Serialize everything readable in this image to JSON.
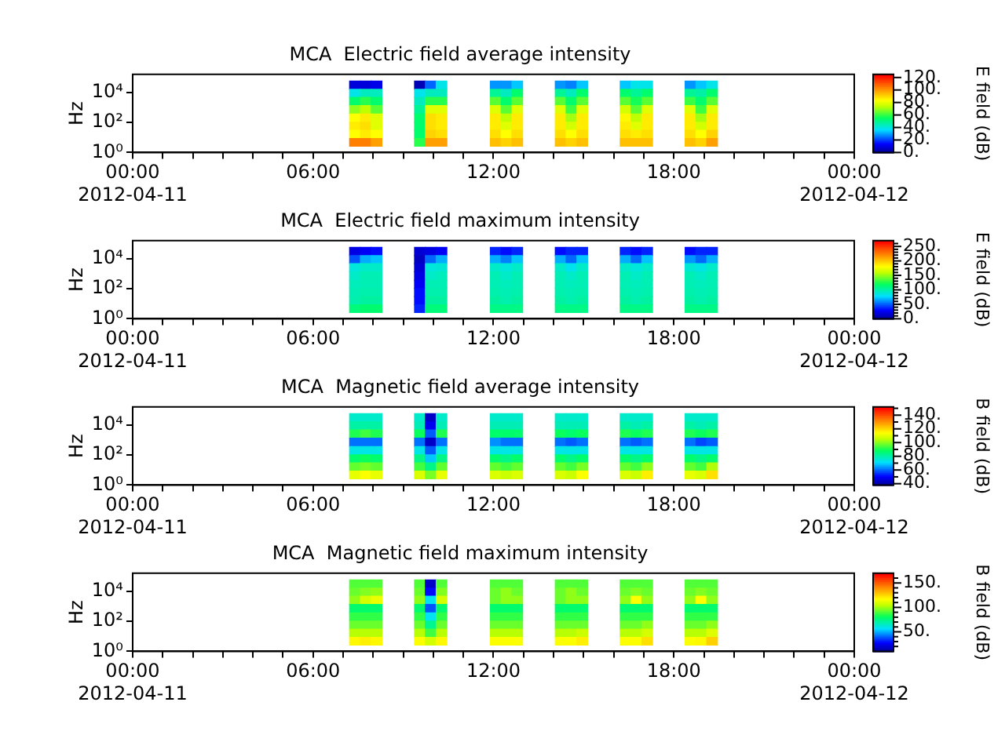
{
  "chart_data": [
    {
      "type": "heatmap",
      "title": "MCA  Electric field average intensity",
      "ylabel": "Hz",
      "clabel": "E field (dB)",
      "log": "y",
      "xlim": [
        0,
        24
      ],
      "xticks": [
        {
          "value": 0,
          "label": "00:00\n2012-04-11"
        },
        {
          "value": 1,
          "label": null
        },
        {
          "value": 2,
          "label": null
        },
        {
          "value": 3,
          "label": null
        },
        {
          "value": 4,
          "label": null
        },
        {
          "value": 5,
          "label": null
        },
        {
          "value": 6,
          "label": "06:00"
        },
        {
          "value": 7,
          "label": null
        },
        {
          "value": 8,
          "label": null
        },
        {
          "value": 9,
          "label": null
        },
        {
          "value": 10,
          "label": null
        },
        {
          "value": 11,
          "label": null
        },
        {
          "value": 12,
          "label": "12:00"
        },
        {
          "value": 13,
          "label": null
        },
        {
          "value": 14,
          "label": null
        },
        {
          "value": 15,
          "label": null
        },
        {
          "value": 16,
          "label": null
        },
        {
          "value": 17,
          "label": null
        },
        {
          "value": 18,
          "label": "18:00"
        },
        {
          "value": 19,
          "label": null
        },
        {
          "value": 20,
          "label": null
        },
        {
          "value": 21,
          "label": null
        },
        {
          "value": 22,
          "label": null
        },
        {
          "value": 23,
          "label": null
        },
        {
          "value": 24,
          "label": "00:00\n2012-04-12"
        }
      ],
      "ylim": [
        1,
        160000
      ],
      "yticks": [
        {
          "value": 1,
          "label": "10⁰"
        },
        {
          "value": 100,
          "label": "10²"
        },
        {
          "value": 10000,
          "label": "10⁴"
        }
      ],
      "clim": [
        0,
        125
      ],
      "cticks": [
        {
          "value": 0,
          "label": "0."
        },
        {
          "value": 20,
          "label": "20."
        },
        {
          "value": 40,
          "label": "40."
        },
        {
          "value": 60,
          "label": "60."
        },
        {
          "value": 80,
          "label": "80."
        },
        {
          "value": 100,
          "label": "100."
        },
        {
          "value": 120,
          "label": "120."
        }
      ],
      "x": [
        7.38,
        7.74,
        8.1,
        8.46,
        8.82,
        9.18,
        9.54,
        9.9,
        10.26,
        10.62,
        10.98,
        11.34,
        11.7,
        12.06,
        12.42,
        12.78,
        13.14,
        13.5,
        13.86,
        14.22,
        14.58,
        14.94,
        15.3,
        15.66,
        16.02,
        16.38,
        16.74,
        17.1,
        17.46,
        17.82,
        18.18,
        18.54,
        18.9,
        19.26
      ],
      "y": [
        33000,
        9400,
        2700,
        750,
        210,
        60,
        17,
        5
      ],
      "cells": [
        [
          10,
          10,
          12,
          null,
          null,
          null,
          5,
          25,
          40,
          null,
          null,
          null,
          null,
          30,
          30,
          35,
          null,
          null,
          null,
          30,
          28,
          35,
          null,
          null,
          null,
          35,
          40,
          40,
          null,
          null,
          null,
          30,
          35,
          40
        ],
        [
          40,
          45,
          45,
          null,
          null,
          null,
          40,
          45,
          45,
          null,
          null,
          null,
          null,
          50,
          45,
          55,
          null,
          null,
          null,
          50,
          45,
          55,
          null,
          null,
          null,
          55,
          50,
          55,
          null,
          null,
          null,
          50,
          48,
          55
        ],
        [
          55,
          60,
          55,
          null,
          null,
          null,
          45,
          60,
          60,
          null,
          null,
          null,
          null,
          65,
          55,
          65,
          null,
          null,
          null,
          65,
          55,
          65,
          null,
          null,
          null,
          65,
          58,
          65,
          null,
          null,
          null,
          62,
          55,
          65
        ],
        [
          70,
          75,
          65,
          null,
          null,
          null,
          50,
          80,
          80,
          null,
          null,
          null,
          null,
          80,
          65,
          80,
          null,
          null,
          null,
          80,
          62,
          80,
          null,
          null,
          null,
          78,
          65,
          80,
          null,
          null,
          null,
          80,
          62,
          80
        ],
        [
          85,
          88,
          80,
          null,
          null,
          null,
          55,
          90,
          88,
          null,
          null,
          null,
          null,
          88,
          75,
          88,
          null,
          null,
          null,
          88,
          72,
          88,
          null,
          null,
          null,
          86,
          75,
          88,
          null,
          null,
          null,
          88,
          72,
          88
        ],
        [
          88,
          90,
          80,
          null,
          null,
          null,
          55,
          90,
          88,
          null,
          null,
          null,
          null,
          88,
          80,
          88,
          null,
          null,
          null,
          88,
          78,
          88,
          null,
          null,
          null,
          88,
          80,
          88,
          null,
          null,
          null,
          88,
          78,
          88
        ],
        [
          85,
          88,
          85,
          null,
          null,
          null,
          55,
          92,
          90,
          null,
          null,
          null,
          null,
          90,
          85,
          90,
          null,
          null,
          null,
          90,
          85,
          90,
          null,
          null,
          null,
          90,
          88,
          90,
          null,
          null,
          null,
          90,
          85,
          92
        ],
        [
          105,
          105,
          100,
          null,
          null,
          null,
          60,
          100,
          100,
          null,
          null,
          null,
          null,
          95,
          92,
          95,
          null,
          null,
          null,
          95,
          92,
          95,
          null,
          null,
          null,
          95,
          95,
          95,
          null,
          null,
          null,
          95,
          92,
          100
        ]
      ]
    },
    {
      "type": "heatmap",
      "title": "MCA  Electric field maximum intensity",
      "ylabel": "Hz",
      "clabel": "E field (dB)",
      "log": "y",
      "xlim": [
        0,
        24
      ],
      "xticks": [
        {
          "value": 0,
          "label": "00:00\n2012-04-11"
        },
        {
          "value": 1,
          "label": null
        },
        {
          "value": 2,
          "label": null
        },
        {
          "value": 3,
          "label": null
        },
        {
          "value": 4,
          "label": null
        },
        {
          "value": 5,
          "label": null
        },
        {
          "value": 6,
          "label": "06:00"
        },
        {
          "value": 7,
          "label": null
        },
        {
          "value": 8,
          "label": null
        },
        {
          "value": 9,
          "label": null
        },
        {
          "value": 10,
          "label": null
        },
        {
          "value": 11,
          "label": null
        },
        {
          "value": 12,
          "label": "12:00"
        },
        {
          "value": 13,
          "label": null
        },
        {
          "value": 14,
          "label": null
        },
        {
          "value": 15,
          "label": null
        },
        {
          "value": 16,
          "label": null
        },
        {
          "value": 17,
          "label": null
        },
        {
          "value": 18,
          "label": "18:00"
        },
        {
          "value": 19,
          "label": null
        },
        {
          "value": 20,
          "label": null
        },
        {
          "value": 21,
          "label": null
        },
        {
          "value": 22,
          "label": null
        },
        {
          "value": 23,
          "label": null
        },
        {
          "value": 24,
          "label": "00:00\n2012-04-12"
        }
      ],
      "ylim": [
        1,
        160000
      ],
      "yticks": [
        {
          "value": 1,
          "label": "10⁰"
        },
        {
          "value": 100,
          "label": "10²"
        },
        {
          "value": 10000,
          "label": "10⁴"
        }
      ],
      "clim": [
        0,
        270
      ],
      "cticks": [
        {
          "value": 0,
          "label": "0."
        },
        {
          "value": 10,
          "label": null
        },
        {
          "value": 20,
          "label": null
        },
        {
          "value": 30,
          "label": null
        },
        {
          "value": 40,
          "label": null
        },
        {
          "value": 50,
          "label": "50."
        },
        {
          "value": 60,
          "label": null
        },
        {
          "value": 70,
          "label": null
        },
        {
          "value": 80,
          "label": null
        },
        {
          "value": 90,
          "label": null
        },
        {
          "value": 100,
          "label": "100."
        },
        {
          "value": 110,
          "label": null
        },
        {
          "value": 120,
          "label": null
        },
        {
          "value": 130,
          "label": null
        },
        {
          "value": 140,
          "label": null
        },
        {
          "value": 150,
          "label": "150."
        },
        {
          "value": 160,
          "label": null
        },
        {
          "value": 170,
          "label": null
        },
        {
          "value": 180,
          "label": null
        },
        {
          "value": 190,
          "label": null
        },
        {
          "value": 200,
          "label": "200."
        },
        {
          "value": 210,
          "label": null
        },
        {
          "value": 220,
          "label": null
        },
        {
          "value": 230,
          "label": null
        },
        {
          "value": 240,
          "label": null
        },
        {
          "value": 250,
          "label": "250."
        },
        {
          "value": 260,
          "label": null
        }
      ],
      "x": [
        7.38,
        7.74,
        8.1,
        8.46,
        8.82,
        9.18,
        9.54,
        9.9,
        10.26,
        10.62,
        10.98,
        11.34,
        11.7,
        12.06,
        12.42,
        12.78,
        13.14,
        13.5,
        13.86,
        14.22,
        14.58,
        14.94,
        15.3,
        15.66,
        16.02,
        16.38,
        16.74,
        17.1,
        17.46,
        17.82,
        18.18,
        18.54,
        18.9,
        19.26
      ],
      "y": [
        33000,
        9400,
        2700,
        750,
        210,
        60,
        17,
        5
      ],
      "cells": [
        [
          25,
          30,
          35,
          null,
          null,
          null,
          20,
          25,
          30,
          null,
          null,
          null,
          null,
          40,
          35,
          40,
          null,
          null,
          null,
          35,
          40,
          40,
          null,
          null,
          null,
          40,
          35,
          40,
          null,
          null,
          null,
          35,
          40,
          40
        ],
        [
          50,
          70,
          75,
          null,
          null,
          null,
          15,
          55,
          70,
          null,
          null,
          null,
          null,
          70,
          60,
          75,
          null,
          null,
          null,
          70,
          55,
          75,
          null,
          null,
          null,
          70,
          55,
          75,
          null,
          null,
          null,
          65,
          55,
          70
        ],
        [
          90,
          95,
          95,
          null,
          null,
          null,
          20,
          90,
          92,
          null,
          null,
          null,
          null,
          95,
          90,
          95,
          null,
          null,
          null,
          95,
          85,
          95,
          null,
          null,
          null,
          95,
          90,
          95,
          null,
          null,
          null,
          92,
          88,
          95
        ],
        [
          95,
          100,
          100,
          null,
          null,
          null,
          25,
          95,
          98,
          null,
          null,
          null,
          null,
          100,
          95,
          100,
          null,
          null,
          null,
          100,
          95,
          100,
          null,
          null,
          null,
          100,
          95,
          100,
          null,
          null,
          null,
          100,
          95,
          100
        ],
        [
          98,
          100,
          100,
          null,
          null,
          null,
          30,
          100,
          100,
          null,
          null,
          null,
          null,
          100,
          98,
          100,
          null,
          null,
          null,
          100,
          98,
          100,
          null,
          null,
          null,
          100,
          98,
          100,
          null,
          null,
          null,
          100,
          98,
          100
        ],
        [
          100,
          102,
          102,
          null,
          null,
          null,
          35,
          102,
          102,
          null,
          null,
          null,
          null,
          102,
          100,
          102,
          null,
          null,
          null,
          102,
          100,
          102,
          null,
          null,
          null,
          102,
          100,
          102,
          null,
          null,
          null,
          102,
          100,
          102
        ],
        [
          102,
          105,
          105,
          null,
          null,
          null,
          35,
          105,
          105,
          null,
          null,
          null,
          null,
          105,
          102,
          105,
          null,
          null,
          null,
          105,
          102,
          105,
          null,
          null,
          null,
          105,
          102,
          105,
          null,
          null,
          null,
          105,
          102,
          105
        ],
        [
          115,
          118,
          118,
          null,
          null,
          null,
          40,
          115,
          115,
          null,
          null,
          null,
          null,
          112,
          112,
          112,
          null,
          null,
          null,
          112,
          112,
          112,
          null,
          null,
          null,
          112,
          112,
          112,
          null,
          null,
          null,
          112,
          112,
          112
        ]
      ]
    },
    {
      "type": "heatmap",
      "title": "MCA  Magnetic field average intensity",
      "ylabel": "Hz",
      "clabel": "B field (dB)",
      "log": "y",
      "xlim": [
        0,
        24
      ],
      "xticks": [
        {
          "value": 0,
          "label": "00:00\n2012-04-11"
        },
        {
          "value": 1,
          "label": null
        },
        {
          "value": 2,
          "label": null
        },
        {
          "value": 3,
          "label": null
        },
        {
          "value": 4,
          "label": null
        },
        {
          "value": 5,
          "label": null
        },
        {
          "value": 6,
          "label": "06:00"
        },
        {
          "value": 7,
          "label": null
        },
        {
          "value": 8,
          "label": null
        },
        {
          "value": 9,
          "label": null
        },
        {
          "value": 10,
          "label": null
        },
        {
          "value": 11,
          "label": null
        },
        {
          "value": 12,
          "label": "12:00"
        },
        {
          "value": 13,
          "label": null
        },
        {
          "value": 14,
          "label": null
        },
        {
          "value": 15,
          "label": null
        },
        {
          "value": 16,
          "label": null
        },
        {
          "value": 17,
          "label": null
        },
        {
          "value": 18,
          "label": "18:00"
        },
        {
          "value": 19,
          "label": null
        },
        {
          "value": 20,
          "label": null
        },
        {
          "value": 21,
          "label": null
        },
        {
          "value": 22,
          "label": null
        },
        {
          "value": 23,
          "label": null
        },
        {
          "value": 24,
          "label": "00:00\n2012-04-12"
        }
      ],
      "ylim": [
        1,
        160000
      ],
      "yticks": [
        {
          "value": 1,
          "label": "10⁰"
        },
        {
          "value": 100,
          "label": "10²"
        },
        {
          "value": 10000,
          "label": "10⁴"
        }
      ],
      "clim": [
        38,
        152
      ],
      "cticks": [
        {
          "value": 40,
          "label": "40."
        },
        {
          "value": 50,
          "label": null
        },
        {
          "value": 60,
          "label": "60."
        },
        {
          "value": 70,
          "label": null
        },
        {
          "value": 80,
          "label": "80."
        },
        {
          "value": 90,
          "label": null
        },
        {
          "value": 100,
          "label": "100."
        },
        {
          "value": 110,
          "label": null
        },
        {
          "value": 120,
          "label": "120."
        },
        {
          "value": 130,
          "label": null
        },
        {
          "value": 140,
          "label": "140."
        },
        {
          "value": 150,
          "label": null
        }
      ],
      "x": [
        7.38,
        7.74,
        8.1,
        8.46,
        8.82,
        9.18,
        9.54,
        9.9,
        10.26,
        10.62,
        10.98,
        11.34,
        11.7,
        12.06,
        12.42,
        12.78,
        13.14,
        13.5,
        13.86,
        14.22,
        14.58,
        14.94,
        15.3,
        15.66,
        16.02,
        16.38,
        16.74,
        17.1,
        17.46,
        17.82,
        18.18,
        18.54,
        18.9,
        19.26
      ],
      "y": [
        33000,
        9400,
        2700,
        750,
        210,
        60,
        17,
        5
      ],
      "cells": [
        [
          78,
          78,
          78,
          null,
          null,
          null,
          78,
          45,
          78,
          null,
          null,
          null,
          null,
          78,
          78,
          78,
          null,
          null,
          null,
          78,
          78,
          78,
          null,
          null,
          null,
          78,
          78,
          78,
          null,
          null,
          null,
          78,
          78,
          78
        ],
        [
          82,
          82,
          82,
          null,
          null,
          null,
          80,
          50,
          80,
          null,
          null,
          null,
          null,
          80,
          80,
          80,
          null,
          null,
          null,
          80,
          80,
          80,
          null,
          null,
          null,
          82,
          80,
          82,
          null,
          null,
          null,
          82,
          80,
          82
        ],
        [
          92,
          95,
          92,
          null,
          null,
          null,
          90,
          60,
          92,
          null,
          null,
          null,
          null,
          88,
          88,
          88,
          null,
          null,
          null,
          90,
          88,
          90,
          null,
          null,
          null,
          92,
          90,
          92,
          null,
          null,
          null,
          92,
          90,
          92
        ],
        [
          62,
          62,
          62,
          null,
          null,
          null,
          62,
          45,
          62,
          null,
          null,
          null,
          null,
          65,
          62,
          62,
          null,
          null,
          null,
          62,
          60,
          62,
          null,
          null,
          null,
          62,
          60,
          62,
          null,
          null,
          null,
          62,
          58,
          60
        ],
        [
          75,
          75,
          75,
          null,
          null,
          null,
          75,
          60,
          75,
          null,
          null,
          null,
          null,
          75,
          75,
          75,
          null,
          null,
          null,
          75,
          75,
          75,
          null,
          null,
          null,
          75,
          75,
          75,
          null,
          null,
          null,
          75,
          75,
          75
        ],
        [
          88,
          90,
          88,
          null,
          null,
          null,
          85,
          70,
          85,
          null,
          null,
          null,
          null,
          88,
          85,
          88,
          null,
          null,
          null,
          88,
          85,
          88,
          null,
          null,
          null,
          88,
          85,
          88,
          null,
          null,
          null,
          88,
          85,
          88
        ],
        [
          98,
          100,
          98,
          null,
          null,
          null,
          95,
          85,
          98,
          null,
          null,
          null,
          null,
          98,
          95,
          98,
          null,
          null,
          null,
          98,
          95,
          100,
          null,
          null,
          null,
          98,
          95,
          102,
          null,
          null,
          null,
          98,
          95,
          105
        ],
        [
          112,
          115,
          112,
          null,
          null,
          null,
          110,
          100,
          112,
          null,
          null,
          null,
          null,
          110,
          108,
          110,
          null,
          null,
          null,
          110,
          108,
          115,
          null,
          null,
          null,
          110,
          108,
          118,
          null,
          null,
          null,
          112,
          110,
          120
        ]
      ]
    },
    {
      "type": "heatmap",
      "title": "MCA  Magnetic field maximum intensity",
      "ylabel": "Hz",
      "clabel": "B field (dB)",
      "log": "y",
      "xlim": [
        0,
        24
      ],
      "xticks": [
        {
          "value": 0,
          "label": "00:00\n2012-04-11"
        },
        {
          "value": 1,
          "label": null
        },
        {
          "value": 2,
          "label": null
        },
        {
          "value": 3,
          "label": null
        },
        {
          "value": 4,
          "label": null
        },
        {
          "value": 5,
          "label": null
        },
        {
          "value": 6,
          "label": "06:00"
        },
        {
          "value": 7,
          "label": null
        },
        {
          "value": 8,
          "label": null
        },
        {
          "value": 9,
          "label": null
        },
        {
          "value": 10,
          "label": null
        },
        {
          "value": 11,
          "label": null
        },
        {
          "value": 12,
          "label": "12:00"
        },
        {
          "value": 13,
          "label": null
        },
        {
          "value": 14,
          "label": null
        },
        {
          "value": 15,
          "label": null
        },
        {
          "value": 16,
          "label": null
        },
        {
          "value": 17,
          "label": null
        },
        {
          "value": 18,
          "label": "18:00"
        },
        {
          "value": 19,
          "label": null
        },
        {
          "value": 20,
          "label": null
        },
        {
          "value": 21,
          "label": null
        },
        {
          "value": 22,
          "label": null
        },
        {
          "value": 23,
          "label": null
        },
        {
          "value": 24,
          "label": "00:00\n2012-04-12"
        }
      ],
      "ylim": [
        1,
        160000
      ],
      "yticks": [
        {
          "value": 1,
          "label": "10⁰"
        },
        {
          "value": 100,
          "label": "10²"
        },
        {
          "value": 10000,
          "label": "10⁴"
        }
      ],
      "clim": [
        10,
        170
      ],
      "cticks": [
        {
          "value": 20,
          "label": null
        },
        {
          "value": 30,
          "label": null
        },
        {
          "value": 40,
          "label": null
        },
        {
          "value": 50,
          "label": "50."
        },
        {
          "value": 60,
          "label": null
        },
        {
          "value": 70,
          "label": null
        },
        {
          "value": 80,
          "label": null
        },
        {
          "value": 90,
          "label": null
        },
        {
          "value": 100,
          "label": "100."
        },
        {
          "value": 110,
          "label": null
        },
        {
          "value": 120,
          "label": null
        },
        {
          "value": 130,
          "label": null
        },
        {
          "value": 140,
          "label": null
        },
        {
          "value": 150,
          "label": "150."
        },
        {
          "value": 160,
          "label": null
        }
      ],
      "x": [
        7.38,
        7.74,
        8.1,
        8.46,
        8.82,
        9.18,
        9.54,
        9.9,
        10.26,
        10.62,
        10.98,
        11.34,
        11.7,
        12.06,
        12.42,
        12.78,
        13.14,
        13.5,
        13.86,
        14.22,
        14.58,
        14.94,
        15.3,
        15.66,
        16.02,
        16.38,
        16.74,
        17.1,
        17.46,
        17.82,
        18.18,
        18.54,
        18.9,
        19.26
      ],
      "y": [
        33000,
        9400,
        2700,
        750,
        210,
        60,
        17,
        5
      ],
      "cells": [
        [
          92,
          92,
          92,
          null,
          null,
          null,
          92,
          20,
          92,
          null,
          null,
          null,
          null,
          92,
          92,
          92,
          null,
          null,
          null,
          92,
          92,
          92,
          null,
          null,
          null,
          92,
          92,
          92,
          null,
          null,
          null,
          92,
          92,
          92
        ],
        [
          95,
          98,
          100,
          null,
          null,
          null,
          95,
          30,
          98,
          null,
          null,
          null,
          null,
          95,
          100,
          95,
          null,
          null,
          null,
          95,
          100,
          95,
          null,
          null,
          null,
          95,
          98,
          95,
          null,
          null,
          null,
          95,
          98,
          95
        ],
        [
          100,
          110,
          115,
          null,
          null,
          null,
          100,
          60,
          110,
          null,
          null,
          null,
          null,
          95,
          100,
          100,
          null,
          null,
          null,
          95,
          100,
          100,
          null,
          null,
          null,
          100,
          118,
          100,
          null,
          null,
          null,
          100,
          118,
          100
        ],
        [
          80,
          80,
          80,
          null,
          null,
          null,
          80,
          40,
          80,
          null,
          null,
          null,
          null,
          80,
          80,
          80,
          null,
          null,
          null,
          80,
          80,
          80,
          null,
          null,
          null,
          80,
          80,
          80,
          null,
          null,
          null,
          80,
          80,
          80
        ],
        [
          88,
          88,
          88,
          null,
          null,
          null,
          88,
          60,
          88,
          null,
          null,
          null,
          null,
          88,
          88,
          88,
          null,
          null,
          null,
          88,
          88,
          88,
          null,
          null,
          null,
          88,
          88,
          88,
          null,
          null,
          null,
          88,
          88,
          88
        ],
        [
          95,
          95,
          95,
          null,
          null,
          null,
          95,
          75,
          95,
          null,
          null,
          null,
          null,
          95,
          95,
          95,
          null,
          null,
          null,
          95,
          95,
          95,
          null,
          null,
          null,
          95,
          95,
          100,
          null,
          null,
          null,
          95,
          95,
          100
        ],
        [
          105,
          105,
          105,
          null,
          null,
          null,
          105,
          90,
          105,
          null,
          null,
          null,
          null,
          105,
          105,
          105,
          null,
          null,
          null,
          105,
          105,
          108,
          null,
          null,
          null,
          105,
          105,
          110,
          null,
          null,
          null,
          105,
          105,
          112
        ],
        [
          120,
          122,
          120,
          null,
          null,
          null,
          118,
          110,
          120,
          null,
          null,
          null,
          null,
          118,
          118,
          118,
          null,
          null,
          null,
          118,
          118,
          122,
          null,
          null,
          null,
          118,
          118,
          125,
          null,
          null,
          null,
          118,
          120,
          128
        ]
      ]
    }
  ]
}
